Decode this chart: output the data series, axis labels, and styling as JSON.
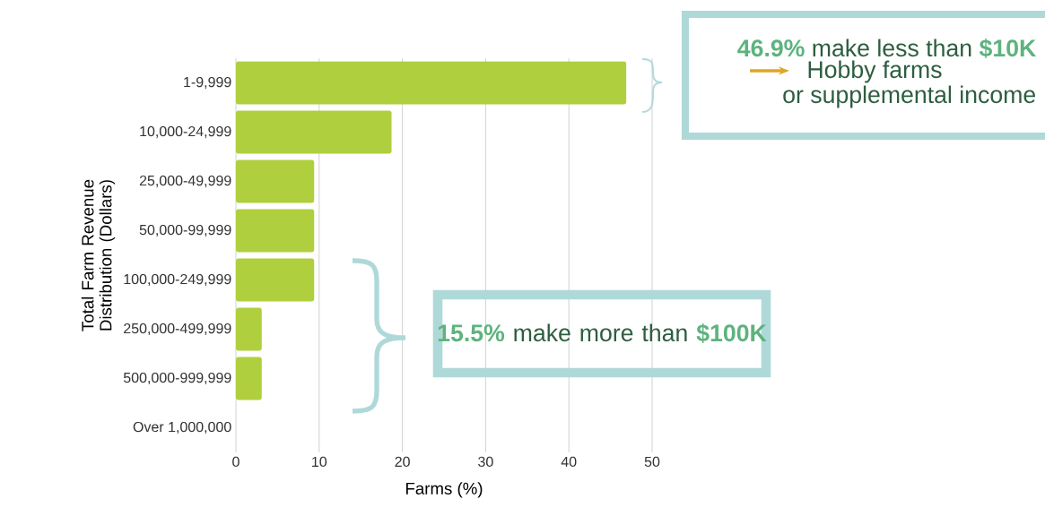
{
  "chart_data": {
    "type": "bar",
    "orientation": "horizontal",
    "categories": [
      "1-9,999",
      "10,000-24,999",
      "25,000-49,999",
      "50,000-99,999",
      "100,000-249,999",
      "250,000-499,999",
      "500,000-999,999",
      "Over 1,000,000"
    ],
    "values": [
      46.9,
      18.7,
      9.4,
      9.4,
      9.4,
      3.1,
      3.1,
      0
    ],
    "color": "#b0cf3e",
    "xlim": [
      0,
      50
    ],
    "xticks": [
      0,
      10,
      20,
      30,
      40,
      50
    ],
    "grid": "x",
    "xlabel": "Farms (%)",
    "ylabel": "Total Farm Revenue Distribution (Dollars)",
    "annotations": [
      "**46.9%** make less than **$10K**",
      "Hobby farms",
      "or supplemental income",
      "**15.5%** make more than **$100K**"
    ]
  }
}
